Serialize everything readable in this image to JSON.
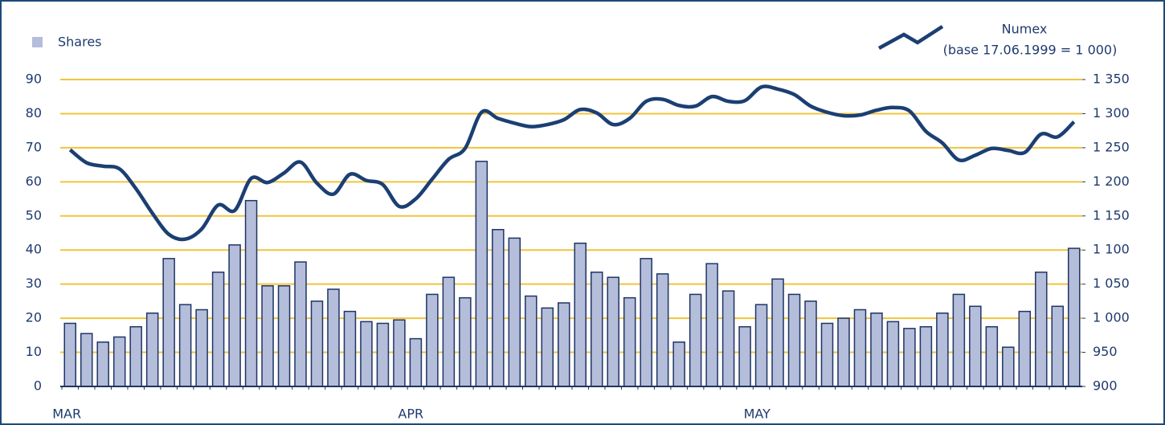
{
  "chart_data": {
    "type": "bar_line",
    "categories": [
      "MAR",
      null,
      null,
      null,
      null,
      null,
      null,
      null,
      null,
      null,
      null,
      null,
      null,
      null,
      null,
      null,
      null,
      null,
      null,
      null,
      null,
      "APR",
      null,
      null,
      null,
      null,
      null,
      null,
      null,
      null,
      null,
      null,
      null,
      null,
      null,
      null,
      null,
      null,
      null,
      null,
      null,
      null,
      "MAY",
      null,
      null,
      null,
      null,
      null,
      null,
      null,
      null,
      null,
      null,
      null,
      null,
      null,
      null,
      null,
      null,
      null,
      null,
      null
    ],
    "series": [
      {
        "name": "Shares",
        "color": "#b4bdda",
        "edge_color": "#1f3564",
        "values": [
          18.5,
          15.5,
          13,
          14.5,
          17.5,
          21.5,
          37.5,
          24,
          22.5,
          33.5,
          41.5,
          54.5,
          29.5,
          29.5,
          36.5,
          25,
          28.5,
          22,
          19,
          18.5,
          19.5,
          14,
          27,
          32,
          26,
          66,
          46,
          43.5,
          26.5,
          23,
          24.5,
          42,
          33.5,
          32,
          26,
          37.5,
          33,
          13,
          27,
          36,
          28,
          17.5,
          24,
          31.5,
          27,
          25,
          18.5,
          20,
          22.5,
          21.5,
          19,
          17,
          17.5,
          21.5,
          27,
          23.5,
          17.5,
          11.5,
          22,
          33.5,
          23.5,
          40.5
        ]
      },
      {
        "name": "Numex",
        "color": "#1b3f73",
        "axis": "y2",
        "values": [
          1247,
          1228,
          1223,
          1219,
          1190,
          1154,
          1123,
          1116,
          1131,
          1166,
          1158,
          1205,
          1199,
          1213,
          1229,
          1198,
          1182,
          1211,
          1202,
          1196,
          1164,
          1175,
          1204,
          1233,
          1249,
          1302,
          1293,
          1286,
          1281,
          1284,
          1291,
          1306,
          1301,
          1284,
          1293,
          1318,
          1321,
          1312,
          1311,
          1325,
          1318,
          1319,
          1339,
          1336,
          1328,
          1311,
          1302,
          1297,
          1298,
          1305,
          1309,
          1304,
          1274,
          1257,
          1232,
          1239,
          1249,
          1246,
          1243,
          1270,
          1266,
          1288
        ]
      }
    ],
    "y2_note": "(base 17.06.1999 = 1 000)",
    "ylim": [
      0,
      90
    ],
    "yticks": [
      0,
      10,
      20,
      30,
      40,
      50,
      60,
      70,
      80,
      90
    ],
    "y2lim": [
      900,
      1350
    ],
    "y2ticks": [
      900,
      950,
      {
        "value": 1000,
        "label": "1 000"
      },
      {
        "value": 1050,
        "label": "1 050"
      },
      {
        "value": 1100,
        "label": "1 100"
      },
      {
        "value": 1150,
        "label": "1 150"
      },
      {
        "value": 1200,
        "label": "1 200"
      },
      {
        "value": 1250,
        "label": "1 250"
      },
      {
        "value": 1300,
        "label": "1 300"
      },
      {
        "value": 1350,
        "label": "1 350"
      }
    ],
    "grid": true,
    "grid_color": "#f2c33c"
  }
}
